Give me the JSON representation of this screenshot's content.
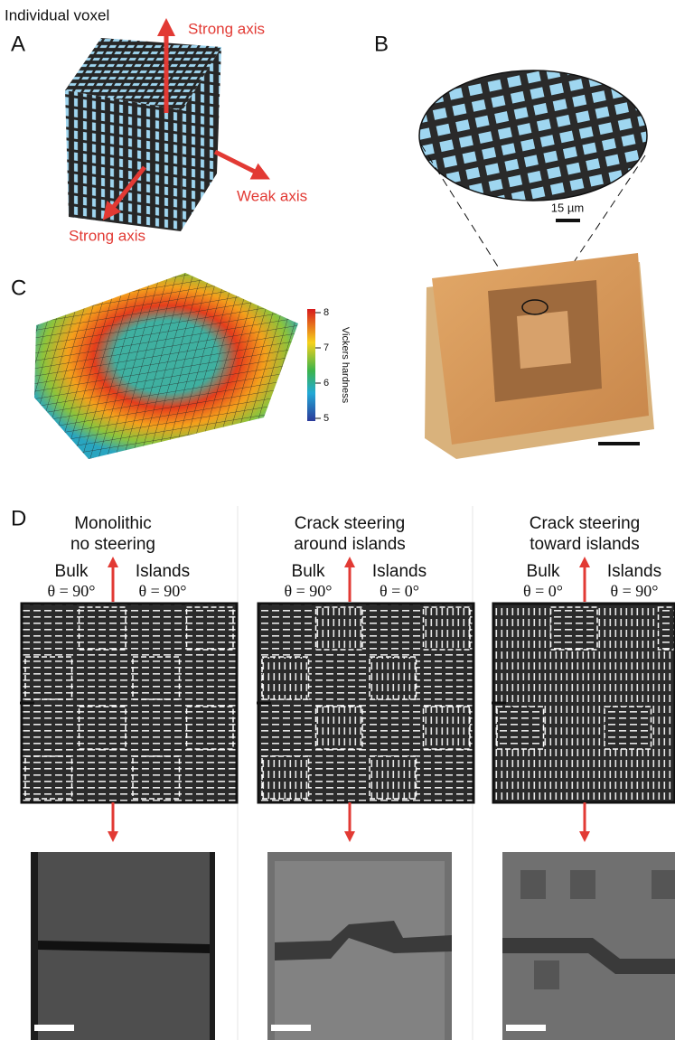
{
  "panels": {
    "a": {
      "label": "A",
      "voxel_label": "Individual voxel",
      "axis_labels": [
        "Strong axis",
        "Weak axis",
        "Strong axis"
      ]
    },
    "b": {
      "label": "B",
      "scale_label": "15 µm"
    },
    "c": {
      "label": "C",
      "colorbar_label": "Vickers hardness",
      "colorbar_ticks": [
        8,
        7,
        6,
        5
      ]
    },
    "d": {
      "label": "D",
      "columns": [
        {
          "title": [
            "Monolithic",
            "no steering"
          ],
          "bulk": "Bulk",
          "bulk_angle": "θ = 90°",
          "islands": "Islands",
          "islands_angle": "θ = 90°"
        },
        {
          "title": [
            "Crack steering",
            "around islands"
          ],
          "bulk": "Bulk",
          "bulk_angle": "θ = 90°",
          "islands": "Islands",
          "islands_angle": "θ = 0°"
        },
        {
          "title": [
            "Crack steering",
            "toward islands"
          ],
          "bulk": "Bulk",
          "bulk_angle": "θ = 0°",
          "islands": "Islands",
          "islands_angle": "θ = 90°"
        }
      ]
    }
  }
}
